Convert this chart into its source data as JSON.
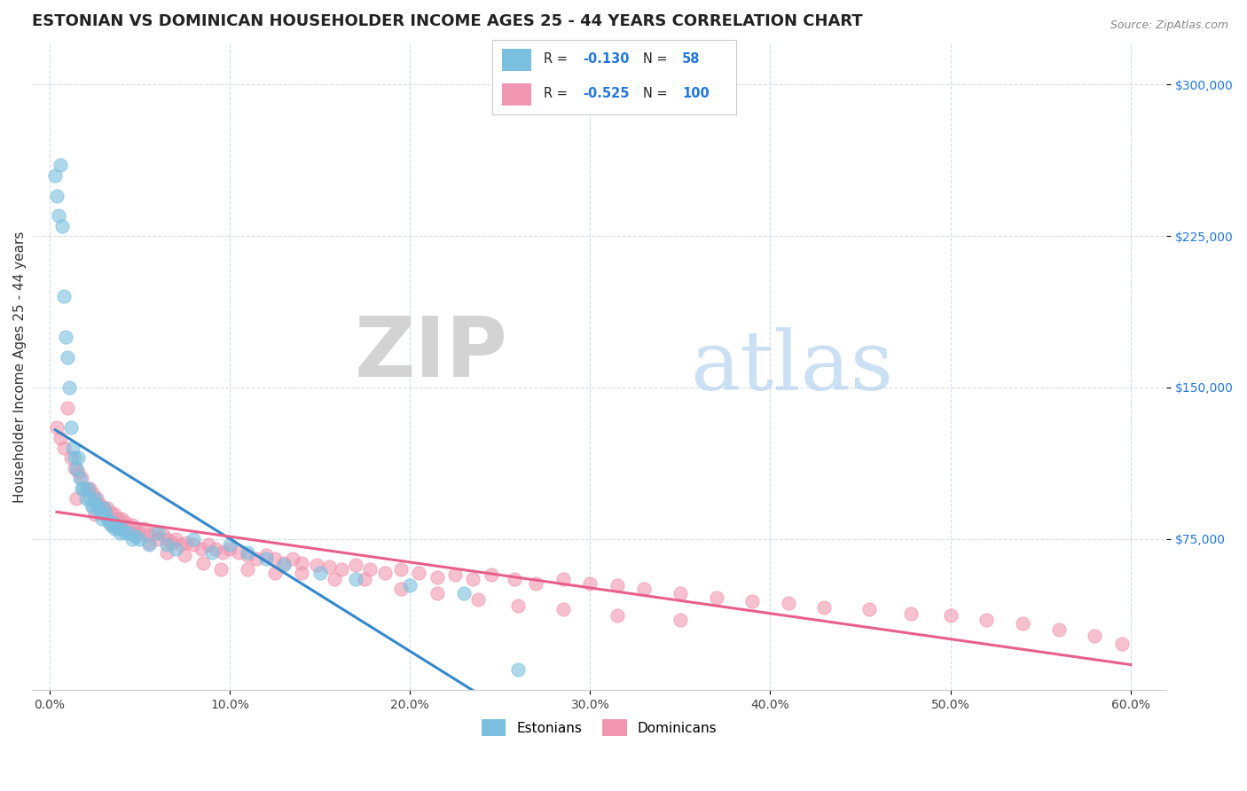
{
  "title": "ESTONIAN VS DOMINICAN HOUSEHOLDER INCOME AGES 25 - 44 YEARS CORRELATION CHART",
  "source": "Source: ZipAtlas.com",
  "ylabel": "Householder Income Ages 25 - 44 years",
  "xlabel_ticks": [
    "0.0%",
    "10.0%",
    "20.0%",
    "30.0%",
    "40.0%",
    "50.0%",
    "60.0%"
  ],
  "xlabel_vals": [
    0.0,
    0.1,
    0.2,
    0.3,
    0.4,
    0.5,
    0.6
  ],
  "ytick_labels": [
    "$75,000",
    "$150,000",
    "$225,000",
    "$300,000"
  ],
  "ytick_vals": [
    75000,
    150000,
    225000,
    300000
  ],
  "ylim": [
    0,
    320000
  ],
  "xlim": [
    -0.01,
    0.62
  ],
  "legend_label1": "Estonians",
  "legend_label2": "Dominicans",
  "watermark_zip": "ZIP",
  "watermark_atlas": "atlas",
  "title_fontsize": 13,
  "axis_label_fontsize": 11,
  "tick_fontsize": 10,
  "background_color": "#ffffff",
  "plot_bg_color": "#ffffff",
  "scatter_color_estonian": "#7bbfdf",
  "scatter_color_dominican": "#f096b0",
  "line_color_estonian": "#3388cc",
  "line_color_dominican": "#e8608a",
  "estonian_x": [
    0.003,
    0.004,
    0.005,
    0.006,
    0.007,
    0.008,
    0.009,
    0.01,
    0.011,
    0.012,
    0.013,
    0.014,
    0.015,
    0.016,
    0.017,
    0.018,
    0.019,
    0.02,
    0.021,
    0.022,
    0.023,
    0.024,
    0.025,
    0.026,
    0.027,
    0.028,
    0.029,
    0.03,
    0.031,
    0.032,
    0.033,
    0.034,
    0.035,
    0.036,
    0.037,
    0.038,
    0.039,
    0.04,
    0.042,
    0.044,
    0.046,
    0.048,
    0.05,
    0.055,
    0.06,
    0.065,
    0.07,
    0.08,
    0.09,
    0.1,
    0.11,
    0.12,
    0.13,
    0.15,
    0.17,
    0.2,
    0.23,
    0.26
  ],
  "estonian_y": [
    255000,
    245000,
    235000,
    260000,
    230000,
    195000,
    175000,
    165000,
    150000,
    130000,
    120000,
    115000,
    110000,
    115000,
    105000,
    100000,
    100000,
    95000,
    100000,
    95000,
    92000,
    90000,
    95000,
    92000,
    90000,
    88000,
    85000,
    90000,
    87000,
    85000,
    83000,
    82000,
    83000,
    80000,
    82000,
    80000,
    78000,
    80000,
    78000,
    78000,
    75000,
    76000,
    75000,
    72000,
    78000,
    72000,
    70000,
    75000,
    68000,
    72000,
    68000,
    65000,
    62000,
    58000,
    55000,
    52000,
    48000,
    10000
  ],
  "dominican_x": [
    0.004,
    0.006,
    0.008,
    0.01,
    0.012,
    0.014,
    0.016,
    0.018,
    0.02,
    0.022,
    0.024,
    0.026,
    0.028,
    0.03,
    0.032,
    0.034,
    0.036,
    0.038,
    0.04,
    0.042,
    0.044,
    0.046,
    0.048,
    0.05,
    0.052,
    0.055,
    0.058,
    0.06,
    0.063,
    0.065,
    0.068,
    0.07,
    0.073,
    0.076,
    0.08,
    0.084,
    0.088,
    0.092,
    0.096,
    0.1,
    0.105,
    0.11,
    0.115,
    0.12,
    0.125,
    0.13,
    0.135,
    0.14,
    0.148,
    0.155,
    0.162,
    0.17,
    0.178,
    0.186,
    0.195,
    0.205,
    0.215,
    0.225,
    0.235,
    0.245,
    0.258,
    0.27,
    0.285,
    0.3,
    0.315,
    0.33,
    0.35,
    0.37,
    0.39,
    0.41,
    0.43,
    0.455,
    0.478,
    0.5,
    0.52,
    0.54,
    0.56,
    0.58,
    0.595,
    0.015,
    0.025,
    0.035,
    0.045,
    0.055,
    0.065,
    0.075,
    0.085,
    0.095,
    0.11,
    0.125,
    0.14,
    0.158,
    0.175,
    0.195,
    0.215,
    0.238,
    0.26,
    0.285,
    0.315,
    0.35
  ],
  "dominican_y": [
    130000,
    125000,
    120000,
    140000,
    115000,
    110000,
    108000,
    105000,
    100000,
    100000,
    97000,
    95000,
    92000,
    90000,
    90000,
    88000,
    87000,
    85000,
    85000,
    83000,
    80000,
    82000,
    80000,
    78000,
    80000,
    77000,
    78000,
    75000,
    77000,
    75000,
    73000,
    75000,
    72000,
    73000,
    72000,
    70000,
    72000,
    70000,
    68000,
    70000,
    68000,
    67000,
    65000,
    67000,
    65000,
    63000,
    65000,
    63000,
    62000,
    61000,
    60000,
    62000,
    60000,
    58000,
    60000,
    58000,
    56000,
    57000,
    55000,
    57000,
    55000,
    53000,
    55000,
    53000,
    52000,
    50000,
    48000,
    46000,
    44000,
    43000,
    41000,
    40000,
    38000,
    37000,
    35000,
    33000,
    30000,
    27000,
    23000,
    95000,
    87000,
    82000,
    78000,
    73000,
    68000,
    67000,
    63000,
    60000,
    60000,
    58000,
    58000,
    55000,
    55000,
    50000,
    48000,
    45000,
    42000,
    40000,
    37000,
    35000
  ]
}
